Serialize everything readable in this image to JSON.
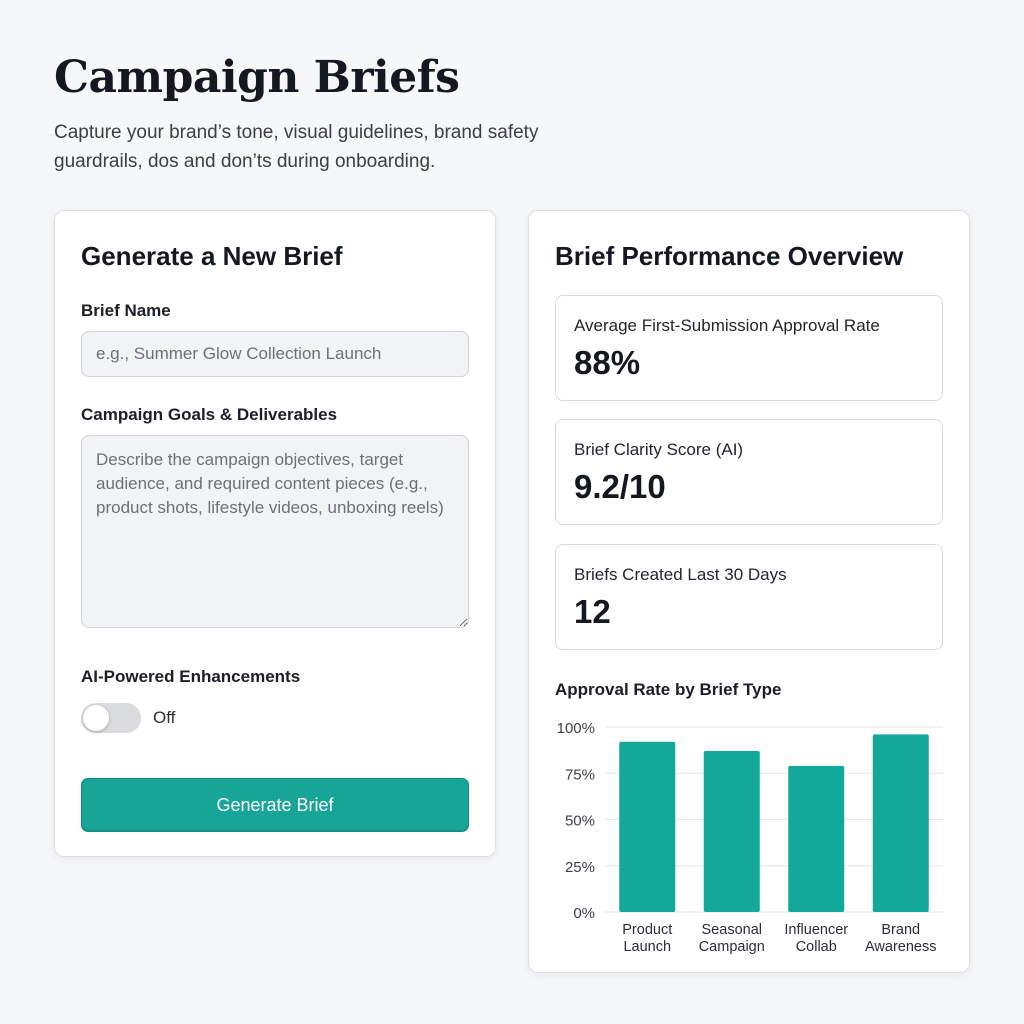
{
  "header": {
    "title": "Campaign Briefs",
    "subtitle": "Capture your brand’s tone, visual guidelines, brand safety guardrails, dos and don’ts during onboarding."
  },
  "form": {
    "title": "Generate a New Brief",
    "brief_name": {
      "label": "Brief Name",
      "value": "",
      "placeholder": "e.g., Summer Glow Collection Launch"
    },
    "goals": {
      "label": "Campaign Goals & Deliverables",
      "value": "",
      "placeholder": "Describe the campaign objectives, target audience, and required content pieces (e.g., product shots, lifestyle videos, unboxing reels)"
    },
    "ai_enhancements": {
      "label": "AI-Powered Enhancements",
      "state": "Off",
      "enabled": false
    },
    "submit_label": "Generate Brief"
  },
  "overview": {
    "title": "Brief Performance Overview",
    "metrics": [
      {
        "label": "Average First-Submission Approval Rate",
        "value": "88%"
      },
      {
        "label": "Brief Clarity Score (AI)",
        "value": "9.2/10"
      },
      {
        "label": "Briefs Created Last 30 Days",
        "value": "12"
      }
    ]
  },
  "colors": {
    "accent": "#17a597",
    "bar": "#12a99a",
    "gridline": "#e4e6e9"
  },
  "chart_data": {
    "type": "bar",
    "title": "Approval Rate by Brief Type",
    "categories": [
      [
        "Product",
        "Launch"
      ],
      [
        "Seasonal",
        "Campaign"
      ],
      [
        "Influencer",
        "Collab"
      ],
      [
        "Brand",
        "Awareness"
      ]
    ],
    "values": [
      92,
      87,
      79,
      96
    ],
    "ylim": [
      0,
      100
    ],
    "yticks": [
      0,
      25,
      50,
      75,
      100
    ],
    "ytick_labels": [
      "0%",
      "25%",
      "50%",
      "75%",
      "100%"
    ],
    "grid": true
  }
}
